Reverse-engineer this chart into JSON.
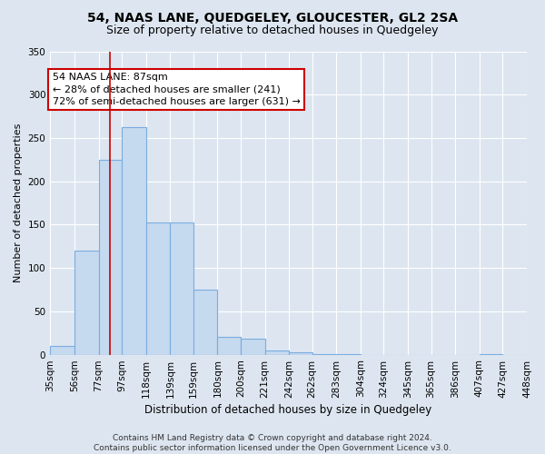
{
  "title": "54, NAAS LANE, QUEDGELEY, GLOUCESTER, GL2 2SA",
  "subtitle": "Size of property relative to detached houses in Quedgeley",
  "xlabel": "Distribution of detached houses by size in Quedgeley",
  "ylabel": "Number of detached properties",
  "bin_edges": [
    35,
    56,
    77,
    97,
    118,
    139,
    159,
    180,
    200,
    221,
    242,
    262,
    283,
    304,
    324,
    345,
    365,
    386,
    407,
    427,
    448
  ],
  "counts": [
    10,
    120,
    225,
    262,
    152,
    152,
    75,
    20,
    18,
    5,
    3,
    1,
    1,
    0,
    0,
    0,
    0,
    0,
    1,
    0
  ],
  "bar_facecolor": "#c5d9ef",
  "bar_edgecolor": "#7aade0",
  "bar_linewidth": 0.8,
  "vline_x": 87,
  "vline_color": "#cc0000",
  "annotation_line1": "54 NAAS LANE: 87sqm",
  "annotation_line2": "← 28% of detached houses are smaller (241)",
  "annotation_line3": "72% of semi-detached houses are larger (631) →",
  "annotation_box_facecolor": "#ffffff",
  "annotation_box_edgecolor": "#cc0000",
  "ylim": [
    0,
    350
  ],
  "yticks": [
    0,
    50,
    100,
    150,
    200,
    250,
    300,
    350
  ],
  "bg_color": "#dde6f0",
  "plot_bg_color": "#dde6f0",
  "grid_color": "#ffffff",
  "title_fontsize": 10,
  "subtitle_fontsize": 9,
  "xlabel_fontsize": 8.5,
  "ylabel_fontsize": 8,
  "tick_fontsize": 7.5,
  "annotation_fontsize": 8,
  "footer_fontsize": 6.5,
  "footer": "Contains HM Land Registry data © Crown copyright and database right 2024.\nContains public sector information licensed under the Open Government Licence v3.0."
}
